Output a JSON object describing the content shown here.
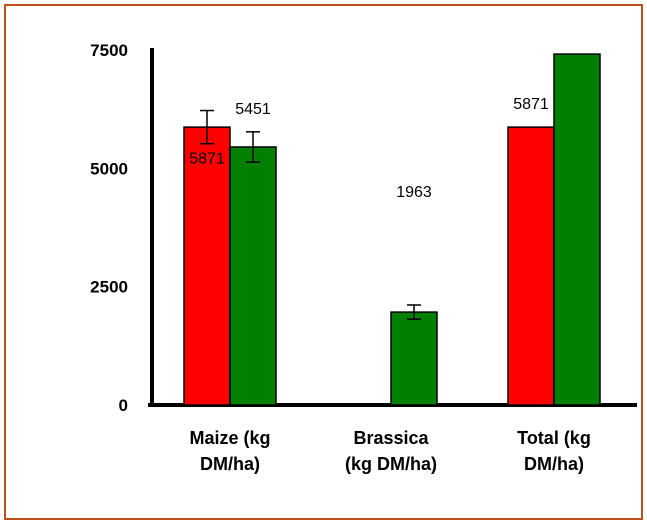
{
  "chart_data": {
    "type": "bar",
    "categories": [
      [
        "Maize (kg",
        "DM/ha)"
      ],
      [
        "Brassica",
        "(kg DM/ha)"
      ],
      [
        "Total (kg",
        "DM/ha)"
      ]
    ],
    "series": [
      {
        "color": "#ff0000",
        "values": [
          5871,
          null,
          5871
        ],
        "error": [
          350,
          null,
          null
        ],
        "labels": [
          "5871",
          "",
          "5871"
        ]
      },
      {
        "color": "#008000",
        "values": [
          5451,
          1963,
          7414
        ],
        "error": [
          320,
          150,
          null
        ],
        "labels": [
          "5451",
          "1963",
          "7414"
        ]
      }
    ],
    "yticks": [
      "0",
      "2500",
      "5000",
      "7500"
    ],
    "ylim": [
      0,
      7500
    ],
    "title": "",
    "xlabel": "",
    "ylabel": "",
    "legend": "none",
    "grid": false,
    "frame_color": "#c0501a"
  }
}
